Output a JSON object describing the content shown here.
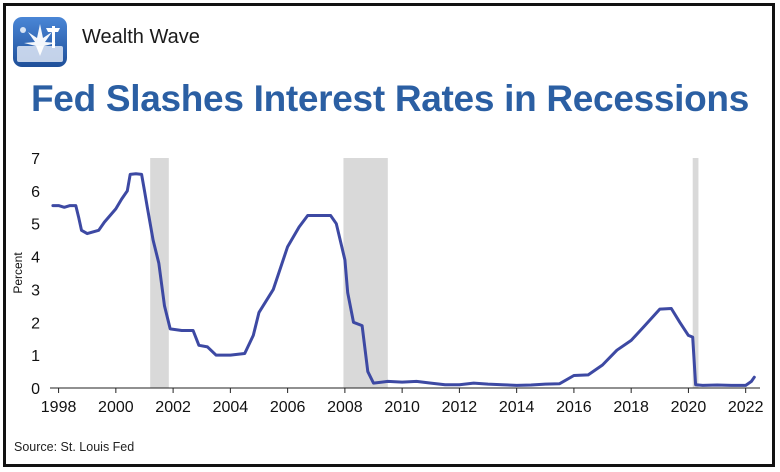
{
  "header": {
    "brand": "Wealth Wave",
    "title": "Fed Slashes Interest Rates in Recessions"
  },
  "footer": {
    "source": "Source: St. Louis Fed"
  },
  "colors": {
    "line": "#3d49a3",
    "recession": "#d9d9d9",
    "title": "#2b5fa3",
    "logo_blue": "#2f64b4"
  },
  "icons": {
    "logo": "wealth-wave-logo-icon"
  },
  "chart_data": {
    "type": "line",
    "title": "Fed Slashes Interest Rates in Recessions",
    "xlabel": "",
    "ylabel": "Percent",
    "xlim": [
      1997.7,
      2022.5
    ],
    "ylim": [
      0,
      7
    ],
    "xticks": [
      "1998",
      "2000",
      "2002",
      "2004",
      "2006",
      "2008",
      "2010",
      "2012",
      "2014",
      "2016",
      "2018",
      "2020",
      "2022"
    ],
    "yticks": [
      "0",
      "1",
      "2",
      "3",
      "4",
      "5",
      "6",
      "7"
    ],
    "grid": false,
    "legend": "none",
    "recessions": [
      [
        2001.2,
        2001.85
      ],
      [
        2007.95,
        2009.5
      ],
      [
        2020.15,
        2020.35
      ]
    ],
    "series": [
      {
        "values": [
          [
            1997.8,
            5.55
          ],
          [
            1998.0,
            5.55
          ],
          [
            1998.2,
            5.5
          ],
          [
            1998.4,
            5.55
          ],
          [
            1998.6,
            5.55
          ],
          [
            1998.7,
            5.2
          ],
          [
            1998.8,
            4.8
          ],
          [
            1999.0,
            4.7
          ],
          [
            1999.2,
            4.75
          ],
          [
            1999.4,
            4.8
          ],
          [
            1999.6,
            5.05
          ],
          [
            1999.8,
            5.25
          ],
          [
            2000.0,
            5.45
          ],
          [
            2000.2,
            5.75
          ],
          [
            2000.4,
            6.0
          ],
          [
            2000.5,
            6.5
          ],
          [
            2000.7,
            6.52
          ],
          [
            2000.9,
            6.5
          ],
          [
            2001.0,
            6.0
          ],
          [
            2001.1,
            5.5
          ],
          [
            2001.3,
            4.5
          ],
          [
            2001.5,
            3.8
          ],
          [
            2001.7,
            2.5
          ],
          [
            2001.9,
            1.8
          ],
          [
            2002.3,
            1.75
          ],
          [
            2002.7,
            1.75
          ],
          [
            2002.9,
            1.3
          ],
          [
            2003.2,
            1.25
          ],
          [
            2003.5,
            1.0
          ],
          [
            2004.0,
            1.0
          ],
          [
            2004.5,
            1.05
          ],
          [
            2004.8,
            1.6
          ],
          [
            2005.0,
            2.3
          ],
          [
            2005.5,
            3.0
          ],
          [
            2006.0,
            4.3
          ],
          [
            2006.4,
            4.9
          ],
          [
            2006.7,
            5.25
          ],
          [
            2007.0,
            5.25
          ],
          [
            2007.5,
            5.25
          ],
          [
            2007.7,
            5.0
          ],
          [
            2008.0,
            3.9
          ],
          [
            2008.1,
            2.9
          ],
          [
            2008.3,
            2.0
          ],
          [
            2008.6,
            1.9
          ],
          [
            2008.8,
            0.5
          ],
          [
            2009.0,
            0.15
          ],
          [
            2009.5,
            0.2
          ],
          [
            2010.0,
            0.18
          ],
          [
            2010.5,
            0.2
          ],
          [
            2011.0,
            0.15
          ],
          [
            2011.5,
            0.1
          ],
          [
            2012.0,
            0.1
          ],
          [
            2012.5,
            0.15
          ],
          [
            2013.0,
            0.12
          ],
          [
            2013.5,
            0.1
          ],
          [
            2014.0,
            0.08
          ],
          [
            2014.5,
            0.09
          ],
          [
            2015.0,
            0.12
          ],
          [
            2015.5,
            0.13
          ],
          [
            2016.0,
            0.38
          ],
          [
            2016.5,
            0.4
          ],
          [
            2017.0,
            0.7
          ],
          [
            2017.5,
            1.15
          ],
          [
            2018.0,
            1.45
          ],
          [
            2018.5,
            1.92
          ],
          [
            2019.0,
            2.4
          ],
          [
            2019.4,
            2.42
          ],
          [
            2019.7,
            2.0
          ],
          [
            2020.0,
            1.6
          ],
          [
            2020.15,
            1.55
          ],
          [
            2020.25,
            0.1
          ],
          [
            2020.5,
            0.08
          ],
          [
            2021.0,
            0.09
          ],
          [
            2021.5,
            0.08
          ],
          [
            2022.0,
            0.08
          ],
          [
            2022.2,
            0.2
          ],
          [
            2022.3,
            0.33
          ]
        ]
      }
    ]
  }
}
